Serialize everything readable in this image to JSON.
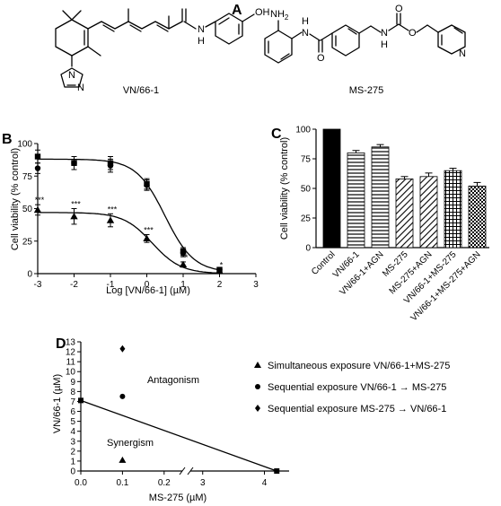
{
  "panels": {
    "A": "A",
    "B": "B",
    "C": "C",
    "D": "D"
  },
  "structures": {
    "left_name": "VN/66-1",
    "right_name": "MS-275",
    "atoms": {
      "oh": "OH",
      "h": "H",
      "o": "O",
      "n": "N",
      "nh2": "NH",
      "nh2_sub": "2"
    }
  },
  "chart_data": [
    {
      "id": "B",
      "type": "line",
      "xlabel": "Log [VN/66-1] (µM)",
      "ylabel": "Cell viability (% control)",
      "xlim": [
        -3,
        3
      ],
      "ylim": [
        0,
        100
      ],
      "xticks": [
        "-3",
        "-2",
        "-1",
        "0",
        "1",
        "2",
        "3"
      ],
      "yticks": [
        "0",
        "25",
        "50",
        "75",
        "100"
      ],
      "series": [
        {
          "marker": "square",
          "x": [
            -3,
            -2,
            -1,
            0,
            1,
            2
          ],
          "y": [
            90,
            85,
            85,
            69,
            17,
            3
          ],
          "err": [
            5,
            5,
            5,
            4,
            3,
            1
          ]
        },
        {
          "marker": "circle",
          "x": [
            -3,
            -2,
            -1,
            0,
            1,
            2
          ],
          "y": [
            81,
            85,
            83,
            68,
            16,
            3
          ],
          "err": [
            4,
            5,
            5,
            4,
            3,
            1
          ]
        },
        {
          "marker": "triangle",
          "x": [
            -3,
            -2,
            -1,
            0,
            1,
            2
          ],
          "y": [
            49,
            44,
            41,
            27,
            7,
            2
          ],
          "err": [
            4,
            6,
            5,
            3,
            2,
            1
          ],
          "stars": [
            "***",
            "***",
            "***",
            "***",
            "**",
            "*"
          ]
        }
      ],
      "fit_curves": [
        {
          "top": 88,
          "bottom": 1,
          "log_ic50": 0.5,
          "hill": 1.1
        },
        {
          "top": 47,
          "bottom": 0,
          "log_ic50": 0.15,
          "hill": 1.1
        }
      ]
    },
    {
      "id": "C",
      "type": "bar",
      "ylabel": "Cell viability (% control)",
      "ylim": [
        0,
        100
      ],
      "yticks": [
        "0",
        "25",
        "50",
        "75",
        "100"
      ],
      "categories": [
        "Control",
        "VN/66-1",
        "VN/66-1+AGN",
        "MS-275",
        "MS-275+AGN",
        "VN/66-1+MS-275",
        "VN/66-1+MS-275+AGN"
      ],
      "values": [
        100,
        80,
        85,
        58,
        60,
        65,
        52
      ],
      "errors": [
        0,
        2,
        2,
        2,
        3,
        2,
        3
      ],
      "patterns": [
        "solid",
        "hlines",
        "hlines",
        "diag",
        "diag",
        "grid",
        "dots"
      ]
    },
    {
      "id": "D",
      "type": "scatter",
      "xlabel": "MS-275 (µM)",
      "ylabel": "VN/66-1 (µM)",
      "ylim": [
        0,
        13
      ],
      "yticks": [
        "0",
        "1",
        "2",
        "3",
        "4",
        "5",
        "6",
        "7",
        "8",
        "9",
        "10",
        "11",
        "12",
        "13"
      ],
      "xticks": [
        "0.0",
        "0.1",
        "0.2",
        "3",
        "4"
      ],
      "isobole": [
        [
          0.0,
          7.1
        ],
        [
          4.2,
          0.0
        ]
      ],
      "points": [
        {
          "marker": "triangle",
          "x": 0.1,
          "y": 1.1
        },
        {
          "marker": "circle",
          "x": 0.1,
          "y": 7.5
        },
        {
          "marker": "diamond",
          "x": 0.1,
          "y": 12.3
        }
      ],
      "annotations": [
        "Antagonism",
        "Synergism"
      ],
      "legend": [
        {
          "marker": "triangle",
          "label": "Simultaneous exposure VN/66-1+MS-275"
        },
        {
          "marker": "circle",
          "label": "Sequential exposure VN/66-1 → MS-275"
        },
        {
          "marker": "diamond",
          "label": "Sequential exposure MS-275 → VN/66-1"
        }
      ]
    }
  ]
}
